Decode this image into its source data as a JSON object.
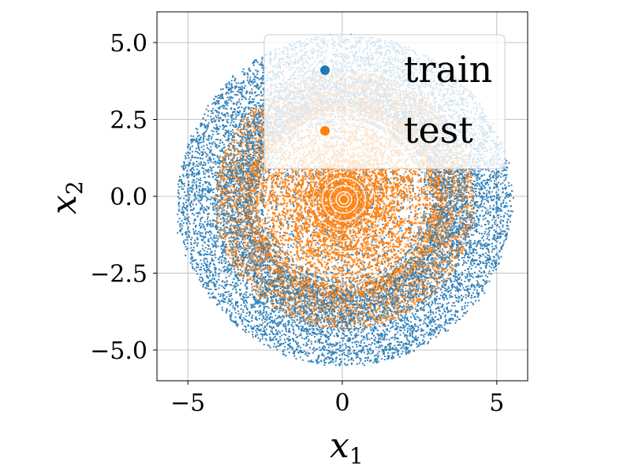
{
  "chart_data": {
    "type": "scatter",
    "title": "",
    "xlabel": "x",
    "xlabel_sub": "1",
    "ylabel": "x",
    "ylabel_sub": "2",
    "xlim": [
      -6,
      6
    ],
    "ylim": [
      -6,
      6
    ],
    "xticks": [
      -5,
      0,
      5
    ],
    "xtick_labels": [
      "−5",
      "0",
      "5"
    ],
    "yticks": [
      -5,
      -2.5,
      0,
      2.5,
      5
    ],
    "ytick_labels": [
      "−5.0",
      "−2.5",
      "0.0",
      "2.5",
      "5.0"
    ],
    "grid": true,
    "legend_position": "top-right",
    "series": [
      {
        "name": "train",
        "color": "#1f77b4",
        "pattern": "spiral",
        "r_range": [
          0.0,
          5.4
        ]
      },
      {
        "name": "test",
        "color": "#ff7f0e",
        "pattern": "spiral",
        "r_range": [
          0.0,
          5.3
        ]
      }
    ]
  }
}
